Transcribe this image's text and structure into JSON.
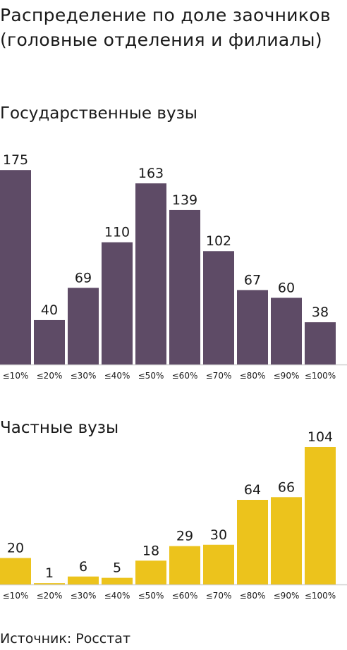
{
  "title": "Распределение по доле заочников (головные отделения и филиалы)",
  "source": "Источник: Росстат",
  "chart_data": [
    {
      "type": "bar",
      "title": "Государственные вузы",
      "categories": [
        "≤10%",
        "≤20%",
        "≤30%",
        "≤40%",
        "≤50%",
        "≤60%",
        "≤70%",
        "≤80%",
        "≤90%",
        "≤100%"
      ],
      "values": [
        175,
        40,
        69,
        110,
        163,
        139,
        102,
        67,
        60,
        38
      ],
      "color": "#5e4b66"
    },
    {
      "type": "bar",
      "title": "Частные вузы",
      "categories": [
        "≤10%",
        "≤20%",
        "≤30%",
        "≤40%",
        "≤50%",
        "≤60%",
        "≤70%",
        "≤80%",
        "≤90%",
        "≤100%"
      ],
      "values": [
        20,
        1,
        6,
        5,
        18,
        29,
        30,
        64,
        66,
        104
      ],
      "color": "#ecc31c"
    }
  ]
}
